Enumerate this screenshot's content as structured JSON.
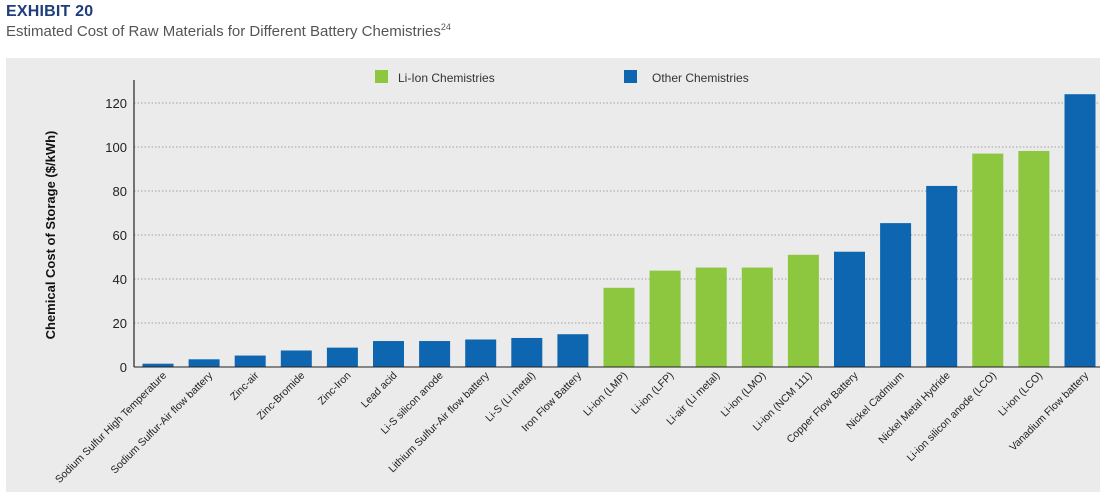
{
  "header": {
    "exhibit": "EXHIBIT 20",
    "subtitle": "Estimated Cost of Raw Materials for Different Battery Chemistries",
    "subtitle_ref": "24"
  },
  "chart_data": {
    "type": "bar",
    "title": "Estimated Cost of Raw Materials for Different Battery Chemistries",
    "ylabel": "Chemical Cost of Storage ($/kWh)",
    "xlabel": "",
    "ylim": [
      0,
      130
    ],
    "yticks": [
      0,
      20,
      40,
      60,
      80,
      100,
      120
    ],
    "grid": "horizontal dotted",
    "legend_position": "top-center",
    "legend": [
      {
        "name": "Li-Ion Chemistries",
        "group": "li",
        "color": "#8dc63f"
      },
      {
        "name": "Other Chemistries",
        "group": "other",
        "color": "#0f66b0"
      }
    ],
    "categories": [
      "Sodium Sulfur High Temperature",
      "Sodium Sulfur-Air flow battery",
      "Zinc-air",
      "Zinc-Bromide",
      "Zinc-Iron",
      "Lead acid",
      "Li-S silicon anode",
      "Lithium Sulfur-Air flow battery",
      "Li-S (Li metal)",
      "Iron Flow Battery",
      "Li-ion (LMP)",
      "Li-ion (LFP)",
      "Li-air (Li metal)",
      "Li-ion (LMO)",
      "Li-ion (NCM 111)",
      "Copper Flow Battery",
      "Nickel Cadmium",
      "Nickel Metal Hydride",
      "Li-ion silicon anode (LCO)",
      "Li-ion (LCO)",
      "Vanadium Flow battery"
    ],
    "values": [
      1.5,
      3.5,
      5.2,
      7.5,
      8.8,
      11.8,
      11.8,
      12.5,
      13.2,
      14.9,
      36,
      43.8,
      45.2,
      45.2,
      51,
      52.4,
      65.4,
      82.3,
      97,
      98.2,
      124
    ],
    "groups": [
      "other",
      "other",
      "other",
      "other",
      "other",
      "other",
      "other",
      "other",
      "other",
      "other",
      "li",
      "li",
      "li",
      "li",
      "li",
      "other",
      "other",
      "other",
      "li",
      "li",
      "other"
    ]
  }
}
